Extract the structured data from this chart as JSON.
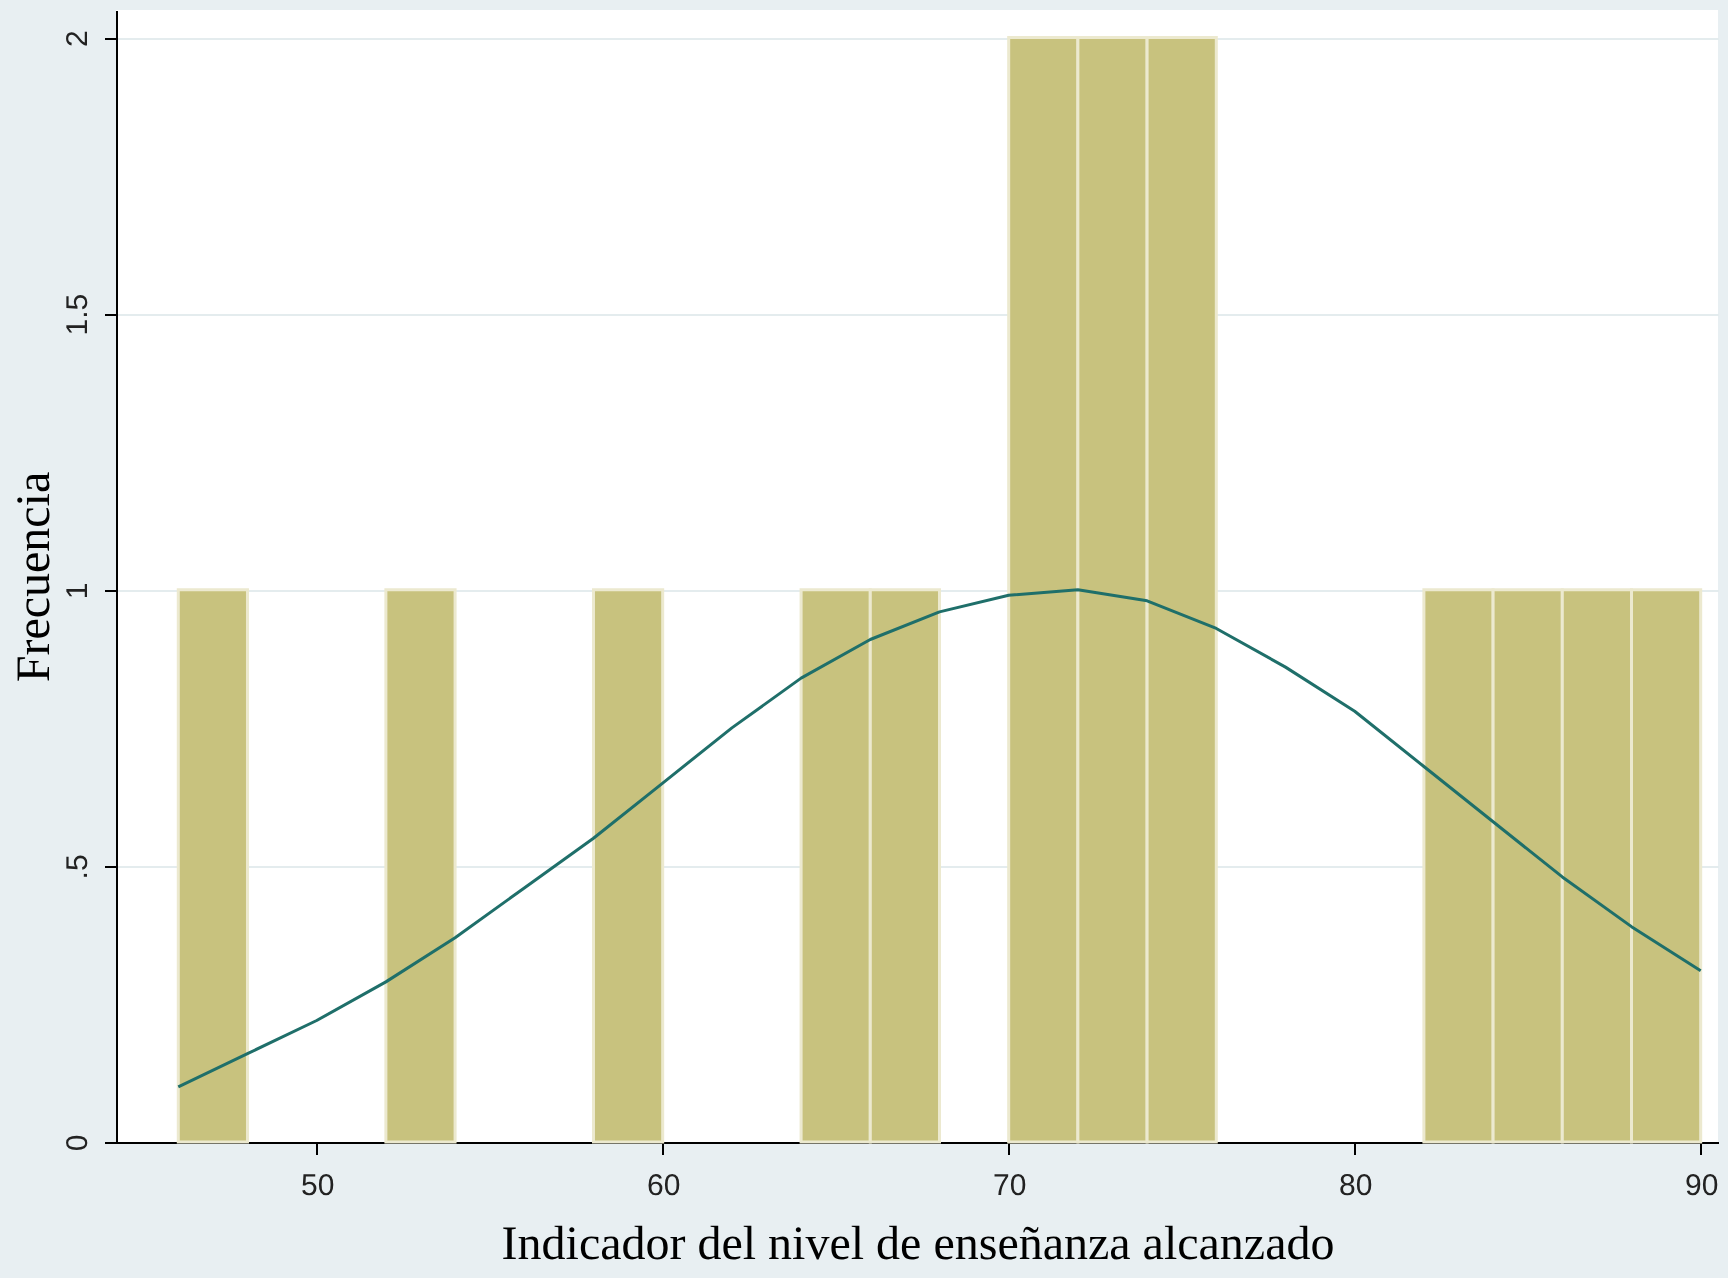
{
  "chart_data": {
    "type": "histogram",
    "xlabel": "Indicador del nivel de enseñanza alcanzado",
    "ylabel": "Frecuencia",
    "series": [
      {
        "color": "#c8c27e",
        "bins": [
          46,
          48,
          50,
          52,
          54,
          56,
          58,
          60,
          62,
          64,
          66,
          68,
          70,
          72,
          74,
          76,
          78,
          80,
          82,
          84,
          86,
          88,
          90
        ],
        "values": [
          1,
          0,
          0,
          1,
          0,
          0,
          1,
          0,
          0,
          1,
          1,
          0,
          2,
          2,
          2,
          0,
          0,
          0,
          1,
          1,
          1,
          1
        ]
      },
      {
        "type": "line",
        "color": "#1f6f6a",
        "x": [
          46,
          48,
          50,
          52,
          54,
          56,
          58,
          60,
          62,
          64,
          66,
          68,
          70,
          72,
          74,
          76,
          78,
          80,
          82,
          84,
          86,
          88,
          90
        ],
        "values": [
          0.1,
          0.16,
          0.22,
          0.29,
          0.37,
          0.46,
          0.55,
          0.65,
          0.75,
          0.84,
          0.91,
          0.96,
          0.99,
          1.0,
          0.98,
          0.93,
          0.86,
          0.78,
          0.68,
          0.58,
          0.48,
          0.39,
          0.31
        ]
      }
    ],
    "xlim": [
      44.2,
      90.5
    ],
    "xticks": [
      50,
      60,
      70,
      80,
      90
    ],
    "ylim": [
      0,
      2.05
    ],
    "yticks": [
      0,
      {
        "value": 0.5,
        "label": ".5"
      },
      1,
      1.5,
      2
    ],
    "grid": "y",
    "legend": false
  }
}
